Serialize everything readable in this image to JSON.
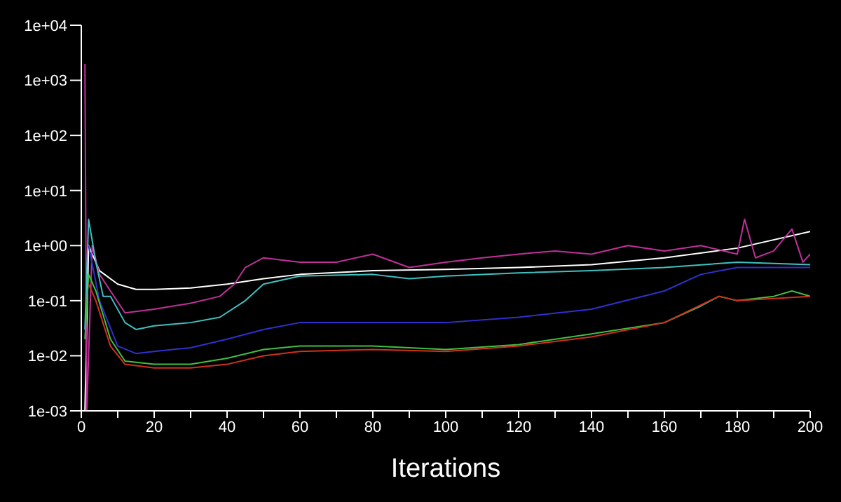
{
  "chart_data": {
    "type": "line",
    "xlabel": "Iterations",
    "log": "y",
    "grid": false,
    "legend": false,
    "marker": "none",
    "line_style": "solid",
    "xlim": [
      0,
      200
    ],
    "ylim": [
      0.001,
      10000
    ],
    "xticks": [
      0,
      {
        "value": 10,
        "label": null
      },
      20,
      {
        "value": 30,
        "label": null
      },
      40,
      {
        "value": 50,
        "label": null
      },
      60,
      {
        "value": 70,
        "label": null
      },
      80,
      {
        "value": 90,
        "label": null
      },
      100,
      {
        "value": 110,
        "label": null
      },
      120,
      {
        "value": 130,
        "label": null
      },
      140,
      {
        "value": 150,
        "label": null
      },
      160,
      {
        "value": 170,
        "label": null
      },
      180,
      {
        "value": 190,
        "label": null
      },
      200
    ],
    "yticks": [
      {
        "value": 0.001,
        "label": "1e-03"
      },
      {
        "value": 0.01,
        "label": "1e-02"
      },
      {
        "value": 0.1,
        "label": "1e-01"
      },
      {
        "value": 1,
        "label": "1e+00"
      },
      {
        "value": 10,
        "label": "1e+01"
      },
      {
        "value": 100,
        "label": "1e+02"
      },
      {
        "value": 1000,
        "label": "1e+03"
      },
      {
        "value": 10000,
        "label": "1e+04"
      }
    ],
    "series": [
      {
        "color": "#ffffff",
        "x": [
          1,
          2,
          5,
          10,
          15,
          20,
          30,
          40,
          50,
          60,
          80,
          100,
          120,
          140,
          160,
          180,
          200
        ],
        "values": [
          0.001,
          1,
          0.35,
          0.2,
          0.16,
          0.16,
          0.17,
          0.2,
          0.25,
          0.3,
          0.35,
          0.37,
          0.4,
          0.45,
          0.6,
          0.9,
          1.8
        ]
      },
      {
        "color": "#c0309a",
        "x": [
          1,
          1.5,
          3,
          5,
          8,
          12,
          20,
          30,
          38,
          42,
          45,
          50,
          60,
          70,
          80,
          90,
          100,
          110,
          120,
          130,
          140,
          150,
          160,
          170,
          180,
          182,
          185,
          190,
          195,
          198,
          200
        ],
        "values": [
          2000,
          0.001,
          1,
          0.3,
          0.15,
          0.06,
          0.07,
          0.09,
          0.12,
          0.2,
          0.4,
          0.6,
          0.5,
          0.5,
          0.7,
          0.4,
          0.5,
          0.6,
          0.7,
          0.8,
          0.7,
          1,
          0.8,
          1,
          0.7,
          3,
          0.6,
          0.8,
          2,
          0.5,
          0.7
        ]
      },
      {
        "color": "#40c0c0",
        "x": [
          1,
          2,
          4,
          6,
          8,
          12,
          15,
          20,
          30,
          38,
          45,
          50,
          60,
          80,
          90,
          100,
          120,
          140,
          160,
          180,
          200
        ],
        "values": [
          0.03,
          3,
          0.5,
          0.12,
          0.12,
          0.04,
          0.03,
          0.035,
          0.04,
          0.05,
          0.1,
          0.2,
          0.28,
          0.3,
          0.25,
          0.28,
          0.32,
          0.35,
          0.4,
          0.5,
          0.45
        ]
      },
      {
        "color": "#3030d0",
        "x": [
          2,
          5,
          10,
          15,
          20,
          30,
          40,
          50,
          60,
          80,
          100,
          120,
          140,
          160,
          170,
          180,
          200
        ],
        "values": [
          1,
          0.1,
          0.015,
          0.011,
          0.012,
          0.014,
          0.02,
          0.03,
          0.04,
          0.04,
          0.04,
          0.05,
          0.07,
          0.15,
          0.3,
          0.4,
          0.4
        ]
      },
      {
        "color": "#40c040",
        "x": [
          1,
          2,
          4,
          8,
          12,
          20,
          30,
          40,
          50,
          60,
          80,
          100,
          120,
          140,
          160,
          170,
          175,
          180,
          190,
          195,
          200
        ],
        "values": [
          0.02,
          0.3,
          0.15,
          0.02,
          0.008,
          0.007,
          0.007,
          0.009,
          0.013,
          0.015,
          0.015,
          0.013,
          0.016,
          0.025,
          0.04,
          0.08,
          0.12,
          0.1,
          0.12,
          0.15,
          0.12
        ]
      },
      {
        "color": "#d03020",
        "x": [
          2,
          4,
          8,
          12,
          20,
          30,
          40,
          50,
          60,
          80,
          100,
          120,
          140,
          160,
          175,
          180,
          200
        ],
        "values": [
          0.2,
          0.1,
          0.015,
          0.007,
          0.006,
          0.006,
          0.007,
          0.01,
          0.012,
          0.013,
          0.012,
          0.015,
          0.022,
          0.04,
          0.12,
          0.1,
          0.12
        ]
      }
    ]
  }
}
